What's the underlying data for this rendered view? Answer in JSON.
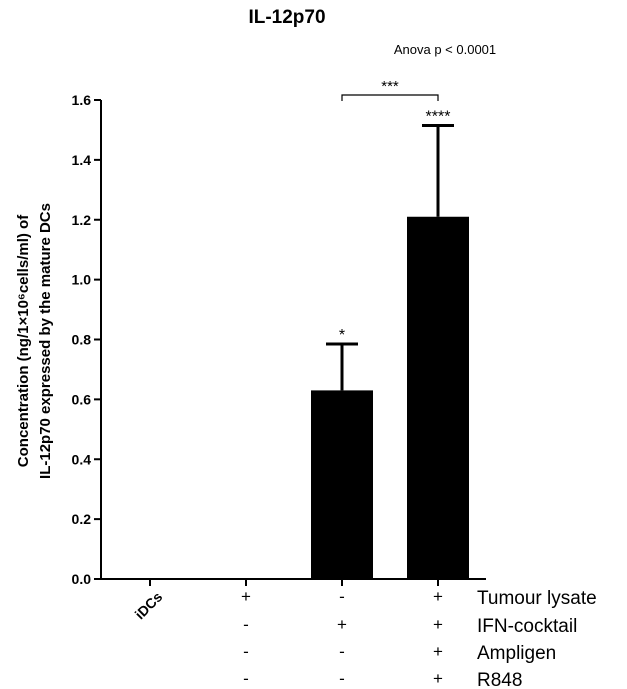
{
  "chart_data": {
    "type": "bar",
    "title": "IL-12p70",
    "annotation": "Anova p < 0.0001",
    "ylabel_line1": "Concentration (ng/1×10⁶cells/ml) of",
    "ylabel_line2": "IL-12p70 expressed by the mature DCs",
    "ylim": [
      0,
      1.6
    ],
    "yticks": [
      "0.0",
      "0.2",
      "0.4",
      "0.6",
      "0.8",
      "1.0",
      "1.2",
      "1.4",
      "1.6"
    ],
    "categories": [
      "iDCs",
      "",
      "",
      ""
    ],
    "values": [
      0,
      0,
      0.63,
      1.21
    ],
    "errors": [
      0,
      0,
      0.155,
      0.305
    ],
    "significance": [
      "",
      "",
      "*",
      "****"
    ],
    "comparison": {
      "from": 2,
      "to": 3,
      "label": "***"
    },
    "grid": false,
    "conditions": [
      {
        "name": "Tumour lysate",
        "marks": [
          "",
          "+",
          "-",
          "+"
        ]
      },
      {
        "name": "IFN-cocktail",
        "marks": [
          "",
          "-",
          "+",
          "+"
        ]
      },
      {
        "name": "Ampligen",
        "marks": [
          "",
          "-",
          "-",
          "+"
        ]
      },
      {
        "name": "R848",
        "marks": [
          "",
          "-",
          "-",
          "+"
        ]
      }
    ],
    "colors": {
      "bar": "#000000"
    }
  }
}
